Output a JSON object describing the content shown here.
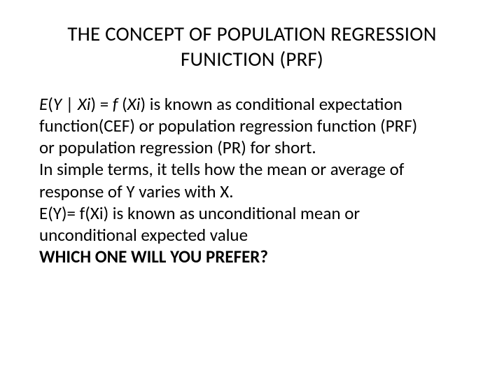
{
  "background_color": "#ffffff",
  "text_color": "#000000",
  "title": {
    "line1": "THE CONCEPT OF POPULATION REGRESSION",
    "line2": "FUNICTION (PRF)",
    "fontsize": 29,
    "align": "center"
  },
  "body": {
    "fontsize": 25,
    "paragraphs": {
      "p1_prefix_E": "E",
      "p1_open": "(",
      "p1_Y": "Y ",
      "p1_bar": "| ",
      "p1_Xi1": "Xi",
      "p1_mid": ") = ",
      "p1_f": "f ",
      "p1_open2": "(",
      "p1_Xi2": "Xi",
      "p1_rest": ") is known as conditional expectation",
      "p2": "function(CEF) or population regression function (PRF)",
      "p3": "or population regression (PR) for short.",
      "p4": "In simple terms, it tells how the mean or average of",
      "p5": "response of Y varies with X.",
      "p6": "E(Y)= f(Xi) is known as unconditional mean or",
      "p7": "unconditional expected value",
      "p8": "WHICH ONE WILL YOU PREFER?"
    }
  }
}
